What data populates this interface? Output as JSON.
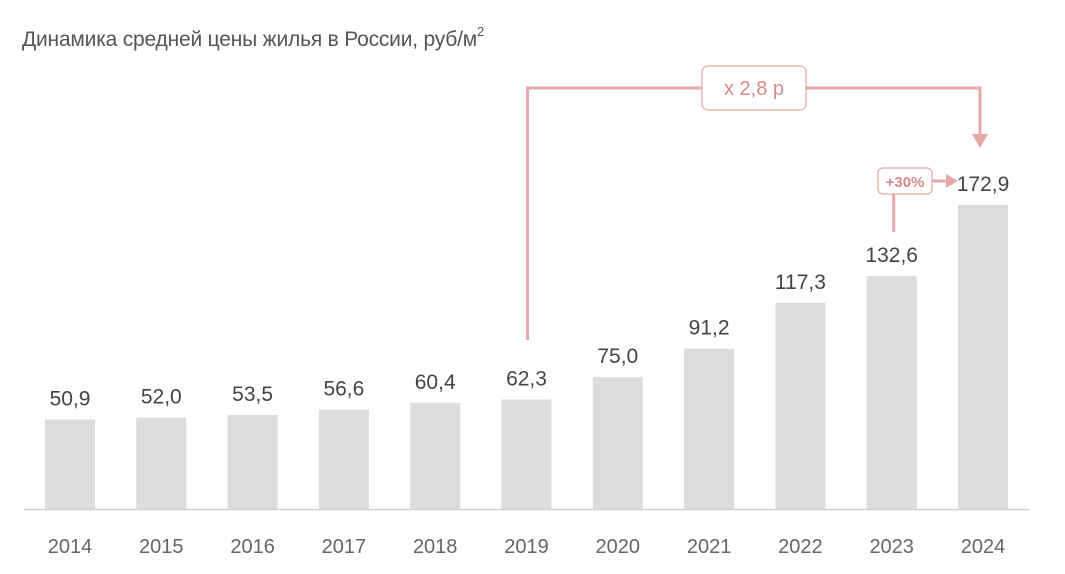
{
  "chart_data": {
    "type": "bar",
    "title": "Динамика средней цены жилья в России, руб/м",
    "title_sup": "2",
    "categories": [
      "2014",
      "2015",
      "2016",
      "2017",
      "2018",
      "2019",
      "2020",
      "2021",
      "2022",
      "2023",
      "2024"
    ],
    "values": [
      50.9,
      52.0,
      53.5,
      56.6,
      60.4,
      62.3,
      75.0,
      91.2,
      117.3,
      132.6,
      172.9
    ],
    "value_labels": [
      "50,9",
      "52,0",
      "53,5",
      "56,6",
      "60,4",
      "62,3",
      "75,0",
      "91,2",
      "117,3",
      "132,6",
      "172,9"
    ],
    "xlabel": "",
    "ylabel": "",
    "ylim": [
      0,
      190
    ],
    "grid": false,
    "annotations": [
      {
        "text": "x 2,8 р",
        "from": "2019",
        "to": "2024"
      },
      {
        "text": "+30%",
        "from": "2023",
        "to": "2024"
      }
    ]
  },
  "colors": {
    "bar": "#dcdcdc",
    "annotation": "#e6a8a8",
    "annotation_text": "#d98a8a",
    "baseline": "#d0d0d0"
  }
}
